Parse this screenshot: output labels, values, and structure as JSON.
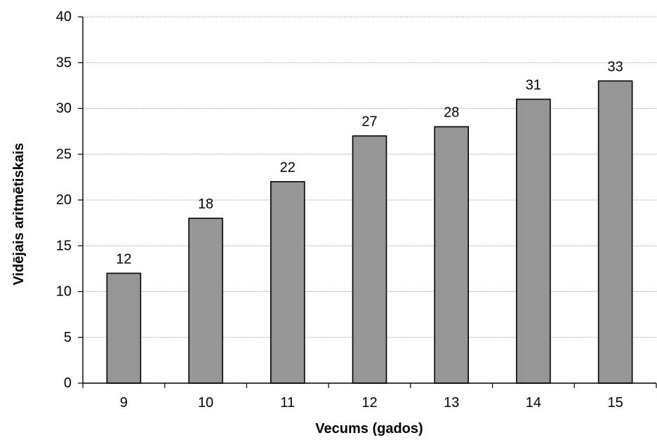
{
  "chart_data": {
    "type": "bar",
    "title": "",
    "xlabel": "Vecums (gados)",
    "ylabel": "Vidējais aritmētiskais",
    "categories": [
      "9",
      "10",
      "11",
      "12",
      "13",
      "14",
      "15"
    ],
    "values": [
      12,
      18,
      22,
      27,
      28,
      31,
      33
    ],
    "data_labels": [
      "12",
      "18",
      "22",
      "27",
      "28",
      "31",
      "33"
    ],
    "ylim": [
      0,
      40
    ],
    "y_ticks": [
      "0",
      "5",
      "10",
      "15",
      "20",
      "25",
      "30",
      "35",
      "40"
    ],
    "grid": true,
    "legend": "none",
    "colors": {
      "bar_fill": "#969696",
      "bar_stroke": "#000000",
      "gridline": "#a0a0a0",
      "axis": "#000000"
    }
  }
}
